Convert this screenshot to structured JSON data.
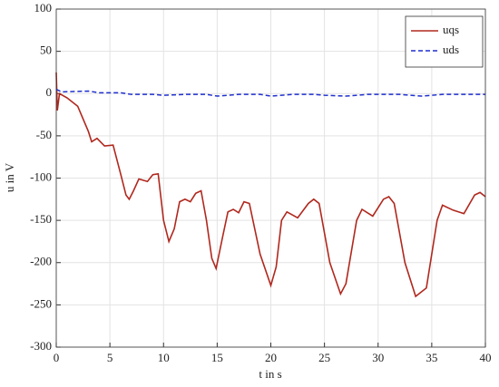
{
  "chart_data": {
    "type": "line",
    "xlabel": "t in s",
    "ylabel": "u in V",
    "xlim": [
      0,
      40
    ],
    "ylim": [
      -300,
      100
    ],
    "xticks": [
      0,
      5,
      10,
      15,
      20,
      25,
      30,
      35,
      40
    ],
    "yticks": [
      -300,
      -250,
      -200,
      -150,
      -100,
      -50,
      0,
      50,
      100
    ],
    "grid": true,
    "legend": "upper right",
    "series": [
      {
        "name": "uqs",
        "color": "#b0281e",
        "dash": false,
        "x": [
          0,
          0.1,
          0.3,
          1,
          2,
          3,
          3.3,
          3.8,
          4.5,
          5.3,
          6,
          6.5,
          6.8,
          7.2,
          7.7,
          8.5,
          9,
          9.5,
          10,
          10.5,
          11,
          11.5,
          12,
          12.5,
          13,
          13.5,
          14,
          14.5,
          14.9,
          15.5,
          16,
          16.5,
          17,
          17.5,
          18,
          19,
          20,
          20.5,
          21,
          21.5,
          22.5,
          23.5,
          24,
          24.5,
          25.5,
          26.5,
          27,
          28,
          28.5,
          29.5,
          30.5,
          31,
          31.5,
          32.5,
          33.5,
          34.5,
          35.5,
          36,
          37,
          38,
          39,
          39.5,
          40
        ],
        "values": [
          25,
          -20,
          0,
          -5,
          -15,
          -45,
          -57,
          -53,
          -62,
          -61,
          -95,
          -120,
          -125,
          -115,
          -101,
          -104,
          -96,
          -95,
          -150,
          -175,
          -160,
          -128,
          -125,
          -128,
          -118,
          -115,
          -150,
          -195,
          -207,
          -170,
          -140,
          -137,
          -141,
          -128,
          -130,
          -190,
          -227,
          -205,
          -150,
          -140,
          -147,
          -130,
          -125,
          -130,
          -200,
          -237,
          -225,
          -150,
          -137,
          -145,
          -125,
          -122,
          -130,
          -200,
          -240,
          -230,
          -150,
          -132,
          -138,
          -142,
          -120,
          -117,
          -122
        ]
      },
      {
        "name": "uds",
        "color": "#1f2fcf",
        "dash": true,
        "x": [
          0,
          0.5,
          3,
          4,
          6,
          7,
          9,
          10,
          12,
          14,
          15,
          17,
          19,
          20,
          22,
          24,
          25,
          27,
          29,
          32,
          34,
          36,
          38,
          40
        ],
        "values": [
          5,
          2,
          3,
          1,
          1,
          -1,
          -1,
          -2,
          -1,
          -1,
          -3,
          -1,
          -1,
          -3,
          -1,
          -1,
          -2,
          -3,
          -1,
          -1,
          -3,
          -1,
          -1,
          -1
        ]
      }
    ]
  }
}
